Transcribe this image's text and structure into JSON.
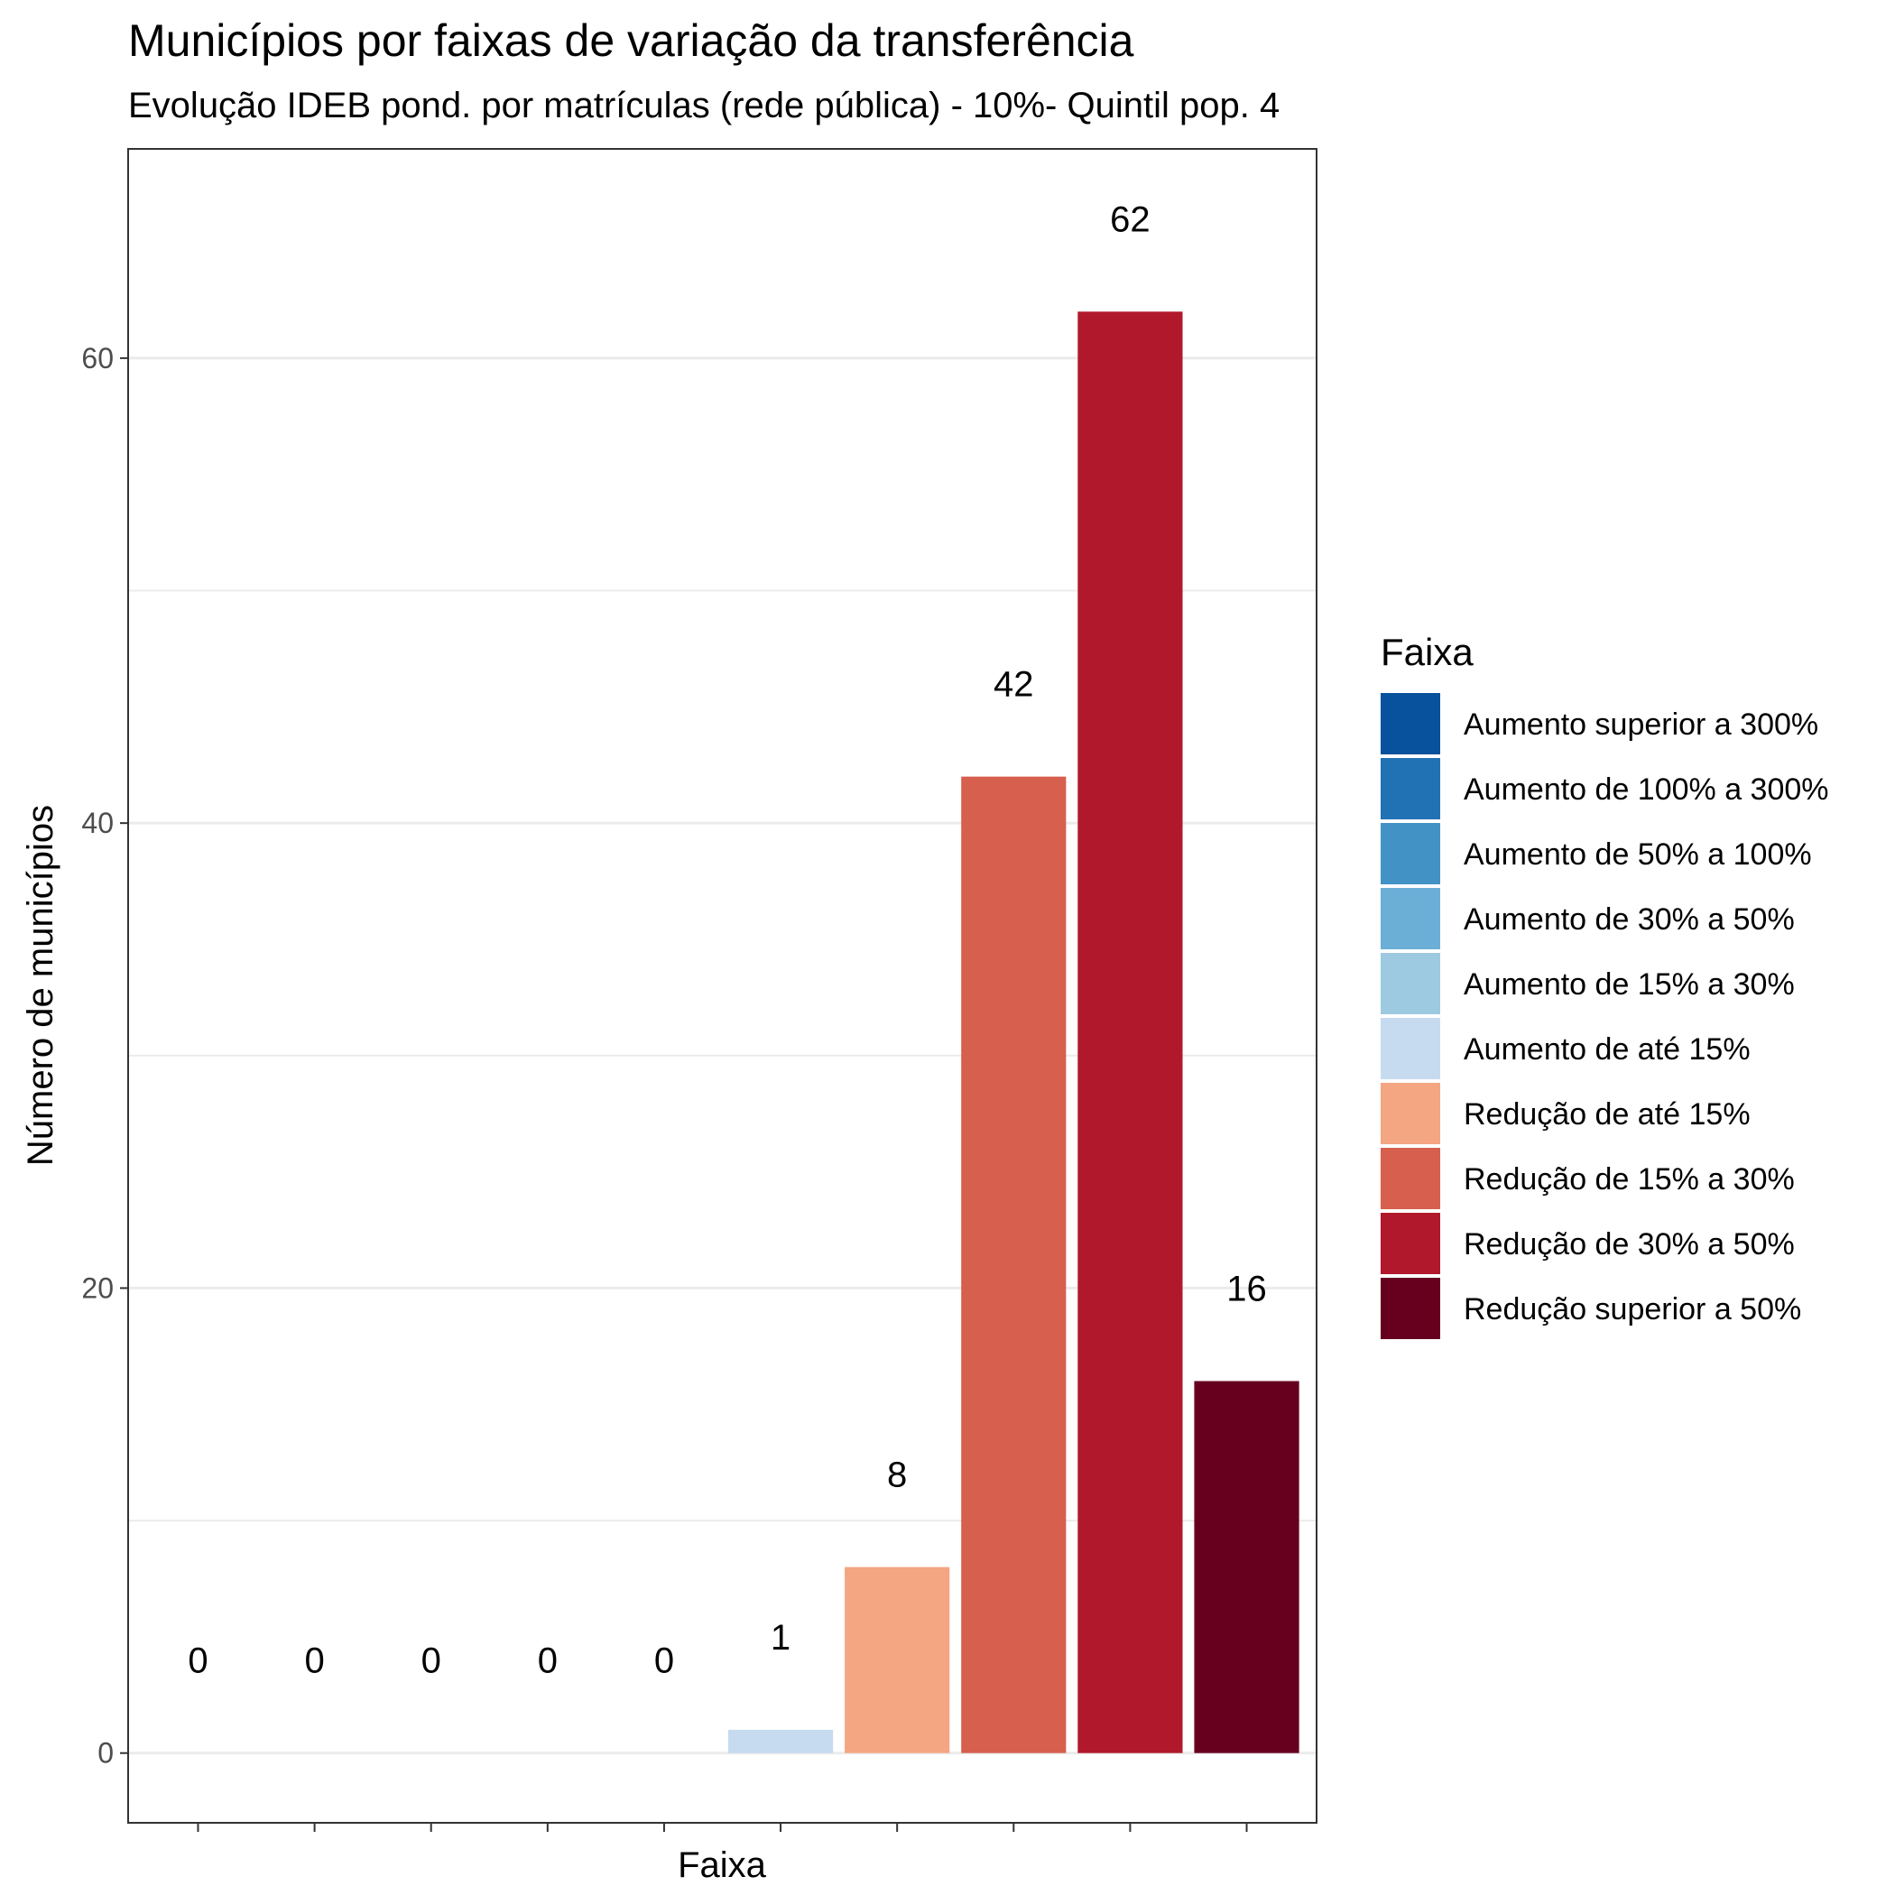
{
  "chart_data": {
    "type": "bar",
    "title": "Municípios por faixas de variação da transferência",
    "subtitle": "Evolução IDEB pond. por matrículas (rede pública) - 10%- Quintil pop. 4",
    "xlabel": "Faixa",
    "ylabel": "Número de municípios",
    "ylim": [
      -3,
      69
    ],
    "y_ticks": [
      0,
      20,
      40,
      60
    ],
    "grid": true,
    "legend_title": "Faixa",
    "legend_position": "right",
    "categories": [
      "Aumento superior a 300%",
      "Aumento de 100% a 300%",
      "Aumento de 50% a 100%",
      "Aumento de 30% a 50%",
      "Aumento de 15% a 30%",
      "Aumento de até 15%",
      "Redução de até 15%",
      "Redução de 15% a 30%",
      "Redução de 30% a 50%",
      "Redução superior a 50%"
    ],
    "values": [
      0,
      0,
      0,
      0,
      0,
      1,
      8,
      42,
      62,
      16
    ],
    "colors": [
      "#08519c",
      "#2171b5",
      "#4292c6",
      "#6baed6",
      "#9ecae1",
      "#c6dbef",
      "#f4a582",
      "#d6604d",
      "#b2182b",
      "#67001f"
    ]
  }
}
